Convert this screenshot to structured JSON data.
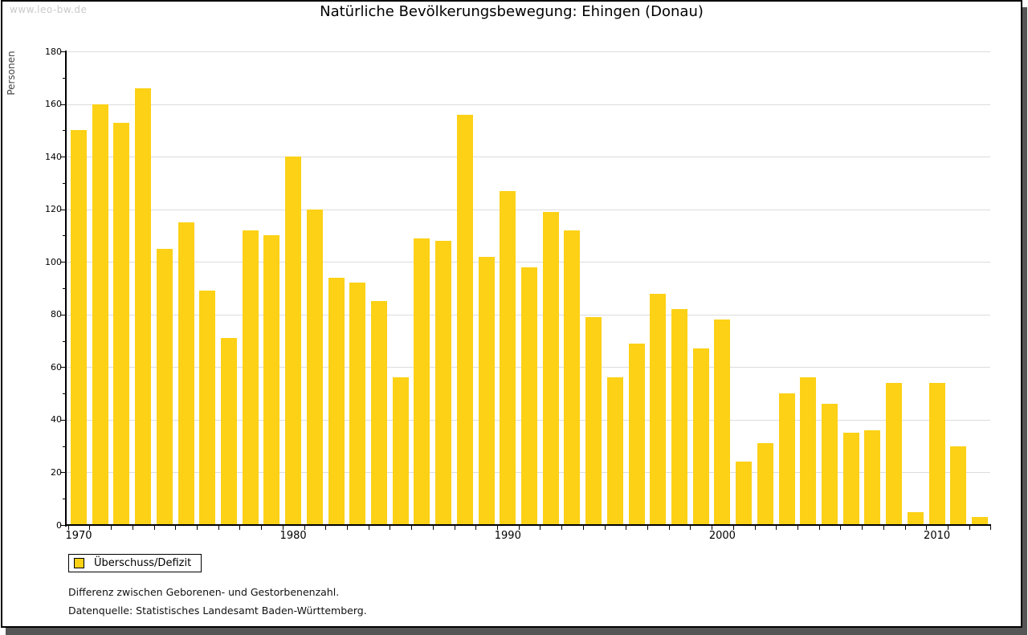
{
  "watermark": "www.leo-bw.de",
  "legend": {
    "label": "Überschuss/Defizit",
    "swatch_color": "#FCD116"
  },
  "footnotes": [
    "Differenz zwischen Geborenen- und Gestorbenenzahl.",
    "Datenquelle: Statistisches Landesamt Baden-Württemberg."
  ],
  "colors": {
    "bar": "#FCD116",
    "gridline": "#dcdcdc",
    "axis": "#000000",
    "watermark": "#c9c9c9",
    "frame_shadow": "#565656"
  },
  "chart_data": {
    "type": "bar",
    "title": "Natürliche Bevölkerungsbewegung: Ehingen (Donau)",
    "ylabel": "Personen",
    "xlabel": "",
    "series_name": "Überschuss/Defizit",
    "x": [
      1970,
      1971,
      1972,
      1973,
      1974,
      1975,
      1976,
      1977,
      1978,
      1979,
      1980,
      1981,
      1982,
      1983,
      1984,
      1985,
      1986,
      1987,
      1988,
      1989,
      1990,
      1991,
      1992,
      1993,
      1994,
      1995,
      1996,
      1997,
      1998,
      1999,
      2000,
      2001,
      2002,
      2003,
      2004,
      2005,
      2006,
      2007,
      2008,
      2009,
      2010,
      2011,
      2012
    ],
    "values": [
      150,
      160,
      153,
      166,
      105,
      115,
      89,
      71,
      112,
      110,
      140,
      120,
      94,
      92,
      85,
      56,
      109,
      108,
      156,
      102,
      127,
      98,
      119,
      112,
      79,
      56,
      69,
      88,
      82,
      67,
      78,
      24,
      31,
      50,
      56,
      46,
      35,
      36,
      54,
      5,
      54,
      30,
      3
    ],
    "ylim": [
      0,
      180
    ],
    "ytick_step": 20,
    "y_minor_tick_step": 10,
    "xtick_labels": [
      "1970",
      "1980",
      "1990",
      "2000",
      "2010"
    ],
    "grid": true,
    "bar_color": "#FCD116",
    "legend_position": "bottom-left"
  }
}
